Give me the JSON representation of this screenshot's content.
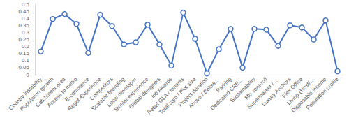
{
  "chart_data": {
    "type": "line",
    "categories": [
      "Country instability",
      "Population growth",
      "Catchment area",
      "Access to metro",
      "E-commerce",
      "Reget-Experience",
      "Competitors",
      "Scalable branding",
      "Local developer",
      "Similar experience",
      "Global designers",
      "Intl Awards",
      "Retail GLA / tenants",
      "Total sqm / Plot size",
      "Project duration",
      "Above / Below…",
      "Parking",
      "Dedicated CRE…",
      "Sustainability",
      "Mix rent-roll",
      "Supermarket / …",
      "Luxury Anchors",
      "Flex Office",
      "Living (Host/…",
      "Disposable income",
      "Population profile"
    ],
    "values": [
      0.165,
      0.395,
      0.43,
      0.36,
      0.155,
      0.425,
      0.345,
      0.215,
      0.23,
      0.355,
      0.215,
      0.065,
      0.44,
      0.255,
      0.01,
      0.18,
      0.325,
      0.05,
      0.325,
      0.32,
      0.205,
      0.35,
      0.335,
      0.25,
      0.385,
      0.025
    ],
    "color": "#4472c4",
    "marker": "circle",
    "ylim": [
      0,
      0.5
    ],
    "yticks": [
      0,
      0.05,
      0.1,
      0.15,
      0.2,
      0.25,
      0.3,
      0.35,
      0.4,
      0.45,
      0.5
    ],
    "grid": false
  }
}
